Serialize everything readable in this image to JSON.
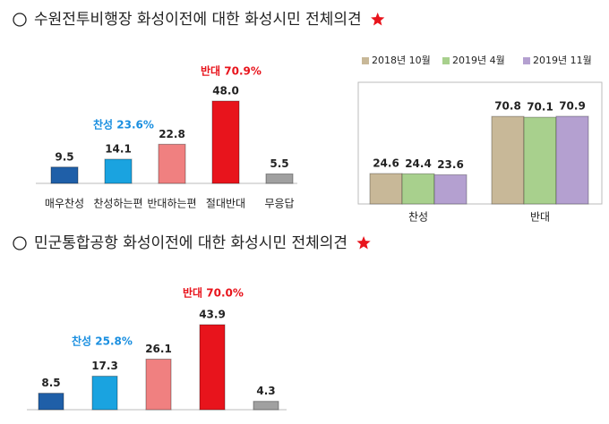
{
  "chart_data": [
    {
      "type": "bar",
      "title": "수원전투비행장 화성이전에 대한 화성시민 전체의견",
      "categories": [
        "매우찬성",
        "찬성하는편",
        "반대하는편",
        "절대반대",
        "무응답"
      ],
      "values": [
        9.5,
        14.1,
        22.8,
        48.0,
        5.5
      ],
      "value_labels": [
        "9.5",
        "14.1",
        "22.8",
        "48.0",
        "5.5"
      ],
      "colors": [
        "#1f5fa8",
        "#1aa3e0",
        "#f08080",
        "#e8141c",
        "#a0a0a0"
      ],
      "annotations": [
        {
          "text": "찬성 23.6%",
          "color": "#1a8fe0"
        },
        {
          "text": "반대 70.9%",
          "color": "#e8141c"
        }
      ]
    },
    {
      "type": "grouped_bar",
      "categories": [
        "찬성",
        "반대"
      ],
      "series": [
        {
          "name": "2018년  10월",
          "color": "#c8b898",
          "values": [
            24.6,
            70.8
          ]
        },
        {
          "name": "2019년  4월",
          "color": "#a8d08d",
          "values": [
            24.4,
            70.1
          ]
        },
        {
          "name": "2019년  11월",
          "color": "#b4a0d0",
          "values": [
            23.6,
            70.9
          ]
        }
      ],
      "legend": "top"
    },
    {
      "type": "bar",
      "title": "민군통합공항 화성이전에 대한 화성시민 전체의견",
      "categories": [
        null,
        null,
        null,
        null,
        null
      ],
      "values": [
        8.5,
        17.3,
        26.1,
        43.9,
        4.3
      ],
      "colors": [
        "#1f5fa8",
        "#1aa3e0",
        "#f08080",
        "#e8141c",
        "#a0a0a0"
      ],
      "annotations": [
        {
          "text": "찬성 25.8%",
          "color": "#1a8fe0"
        },
        {
          "text": "반대 70.0%",
          "color": "#e8141c"
        }
      ]
    }
  ]
}
